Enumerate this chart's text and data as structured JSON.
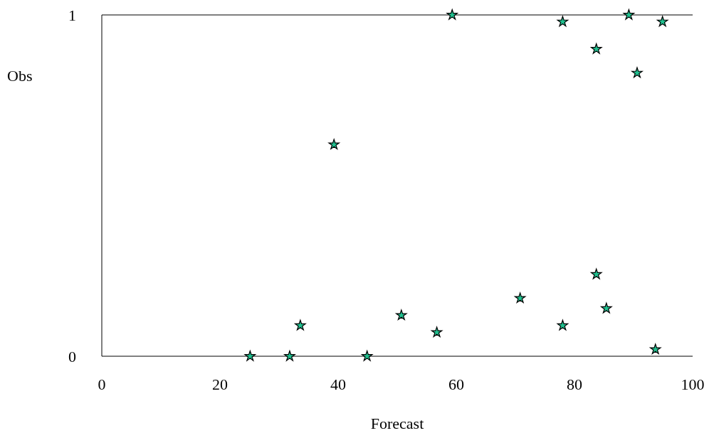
{
  "chart_data": {
    "type": "scatter",
    "xlabel": "Forecast",
    "ylabel": "Obs",
    "xlim": [
      0,
      100
    ],
    "xticks": [
      0,
      20,
      40,
      60,
      80,
      100
    ],
    "ylim": [
      0,
      1
    ],
    "yticks": [
      0,
      1
    ],
    "marker": "star",
    "grid": false,
    "legend": false,
    "series": [
      {
        "color": "#20c08f",
        "x": [
          25.1,
          31.8,
          33.6,
          39.3,
          44.9,
          50.7,
          56.7,
          59.3,
          70.8,
          78.0,
          78.0,
          83.7,
          83.7,
          85.4,
          89.2,
          90.6,
          93.7,
          94.9
        ],
        "values": [
          0,
          0,
          0.09,
          0.62,
          0,
          0.12,
          0.07,
          1,
          0.17,
          0.09,
          0.98,
          0.9,
          0.24,
          0.14,
          1,
          0.83,
          0.02,
          0.98
        ]
      }
    ]
  }
}
